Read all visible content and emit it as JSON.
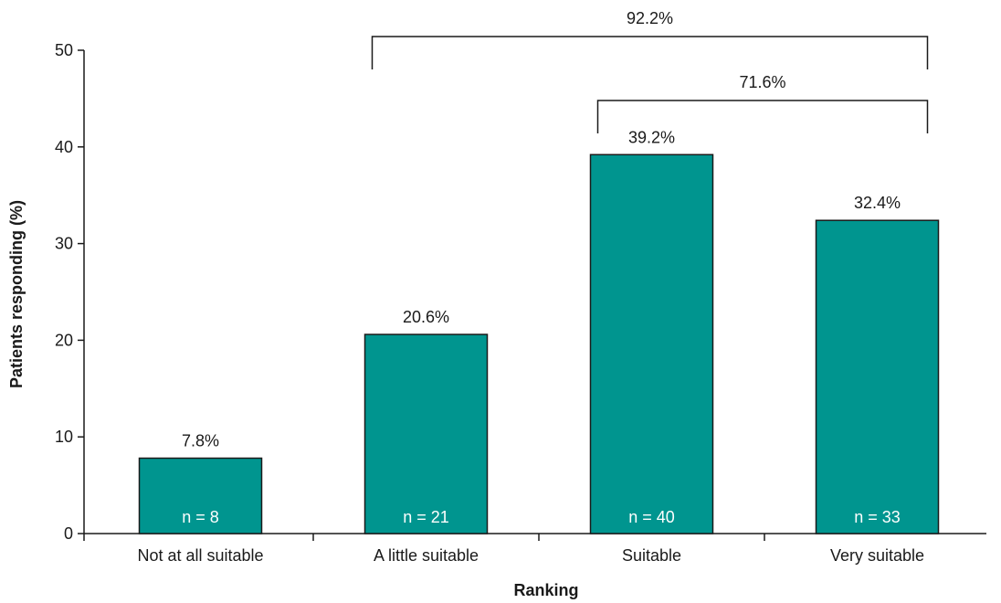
{
  "chart_data": {
    "type": "bar",
    "categories": [
      "Not at all suitable",
      "A little suitable",
      "Suitable",
      "Very suitable"
    ],
    "values": [
      7.8,
      20.6,
      39.2,
      32.4
    ],
    "value_labels": [
      "7.8%",
      "20.6%",
      "39.2%",
      "32.4%"
    ],
    "counts": [
      "n = 8",
      "n = 21",
      "n = 40",
      "n = 33"
    ],
    "xlabel": "Ranking",
    "ylabel": "Patients responding (%)",
    "ylim": [
      0,
      50
    ],
    "yticks": [
      0,
      10,
      20,
      30,
      40,
      50
    ],
    "grid": false,
    "bar_color": "#00958f",
    "bar_stroke": "#1a1a1a",
    "brackets": [
      {
        "from": 1,
        "to": 3,
        "label": "92.2%"
      },
      {
        "from": 2,
        "to": 3,
        "label": "71.6%"
      }
    ]
  }
}
